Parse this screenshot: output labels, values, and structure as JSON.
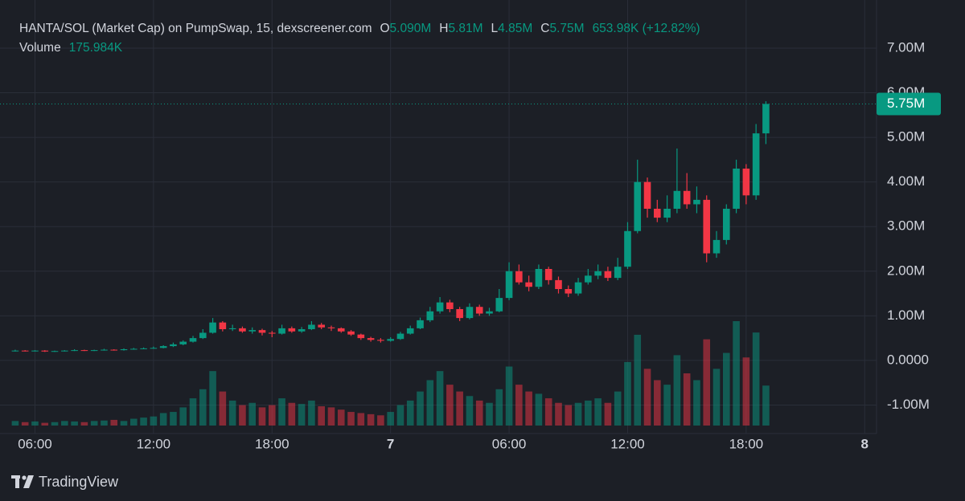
{
  "chart_data": {
    "type": "candlestick",
    "header": {
      "title": "HANTA/SOL (Market Cap) on PumpSwap, 15, dexscreener.com",
      "open_key": "O",
      "open_value": "5.090M",
      "high_key": "H",
      "high_value": "5.81M",
      "low_key": "L",
      "low_value": "4.85M",
      "close_key": "C",
      "close_value": "5.75M",
      "change": "653.98K (+12.82%)",
      "volume_key": "Volume",
      "volume_value": "175.984K"
    },
    "brand": "TradingView",
    "up_color": "#089981",
    "down_color": "#f23645",
    "grid": true,
    "x": [
      5.0,
      5.5,
      6.0,
      6.5,
      7.0,
      7.5,
      8.0,
      8.5,
      9.0,
      9.5,
      10.0,
      10.5,
      11.0,
      11.5,
      12.0,
      12.5,
      13.0,
      13.5,
      14.0,
      14.5,
      15.0,
      15.5,
      16.0,
      16.5,
      17.0,
      17.5,
      18.0,
      18.5,
      19.0,
      19.5,
      20.0,
      20.5,
      21.0,
      21.5,
      22.0,
      22.5,
      23.0,
      23.5,
      24.0,
      24.5,
      25.0,
      25.5,
      26.0,
      26.5,
      27.0,
      27.5,
      28.0,
      28.5,
      29.0,
      29.5,
      30.0,
      30.5,
      31.0,
      31.5,
      32.0,
      32.5,
      33.0,
      33.5,
      34.0,
      34.5,
      35.0,
      35.5,
      36.0,
      36.5,
      37.0,
      37.5,
      38.0,
      38.5,
      39.0,
      39.5,
      40.0,
      40.5,
      41.0,
      41.5,
      42.0,
      42.5,
      43.0
    ],
    "open": [
      0.22,
      0.22,
      0.21,
      0.22,
      0.2,
      0.21,
      0.22,
      0.23,
      0.22,
      0.23,
      0.24,
      0.23,
      0.25,
      0.26,
      0.27,
      0.28,
      0.32,
      0.36,
      0.42,
      0.5,
      0.62,
      0.85,
      0.7,
      0.72,
      0.65,
      0.68,
      0.62,
      0.6,
      0.72,
      0.65,
      0.7,
      0.8,
      0.74,
      0.72,
      0.65,
      0.58,
      0.5,
      0.46,
      0.44,
      0.48,
      0.6,
      0.72,
      0.9,
      1.1,
      1.3,
      1.15,
      0.95,
      1.2,
      1.05,
      1.1,
      1.4,
      2.0,
      1.75,
      1.65,
      2.05,
      1.8,
      1.6,
      1.5,
      1.75,
      1.9,
      2.0,
      1.85,
      2.1,
      2.9,
      4.0,
      3.4,
      3.2,
      3.4,
      3.8,
      3.5,
      3.6,
      2.4,
      2.7,
      3.4,
      4.3,
      3.7,
      5.09
    ],
    "high": [
      0.24,
      0.23,
      0.23,
      0.23,
      0.22,
      0.23,
      0.25,
      0.24,
      0.24,
      0.26,
      0.25,
      0.27,
      0.28,
      0.29,
      0.31,
      0.34,
      0.4,
      0.45,
      0.55,
      0.7,
      0.95,
      0.88,
      0.8,
      0.76,
      0.74,
      0.71,
      0.66,
      0.8,
      0.76,
      0.75,
      0.88,
      0.84,
      0.78,
      0.74,
      0.68,
      0.6,
      0.53,
      0.5,
      0.52,
      0.64,
      0.78,
      0.96,
      1.2,
      1.42,
      1.36,
      1.2,
      1.28,
      1.25,
      1.18,
      1.6,
      2.2,
      2.15,
      1.9,
      2.15,
      2.1,
      1.88,
      1.68,
      1.85,
      2.05,
      2.15,
      2.1,
      2.3,
      3.1,
      4.5,
      4.1,
      3.6,
      3.7,
      4.75,
      4.2,
      3.9,
      3.7,
      2.9,
      3.5,
      4.5,
      4.4,
      5.3,
      5.81
    ],
    "low": [
      0.2,
      0.2,
      0.2,
      0.19,
      0.19,
      0.2,
      0.21,
      0.21,
      0.21,
      0.22,
      0.22,
      0.22,
      0.24,
      0.25,
      0.26,
      0.27,
      0.3,
      0.34,
      0.4,
      0.48,
      0.6,
      0.65,
      0.66,
      0.62,
      0.6,
      0.56,
      0.52,
      0.58,
      0.62,
      0.62,
      0.68,
      0.7,
      0.66,
      0.62,
      0.55,
      0.46,
      0.42,
      0.4,
      0.42,
      0.46,
      0.58,
      0.7,
      0.86,
      1.05,
      1.08,
      0.88,
      0.92,
      1.0,
      1.0,
      1.08,
      1.35,
      1.7,
      1.55,
      1.6,
      1.7,
      1.5,
      1.42,
      1.45,
      1.7,
      1.82,
      1.78,
      1.8,
      2.05,
      2.85,
      3.2,
      3.1,
      3.1,
      3.3,
      3.4,
      3.3,
      2.2,
      2.3,
      2.6,
      3.3,
      3.5,
      3.6,
      4.85
    ],
    "close": [
      0.22,
      0.21,
      0.22,
      0.2,
      0.21,
      0.22,
      0.23,
      0.22,
      0.23,
      0.24,
      0.23,
      0.25,
      0.26,
      0.27,
      0.28,
      0.32,
      0.36,
      0.42,
      0.5,
      0.62,
      0.85,
      0.7,
      0.72,
      0.65,
      0.68,
      0.62,
      0.6,
      0.72,
      0.65,
      0.7,
      0.8,
      0.74,
      0.72,
      0.65,
      0.58,
      0.5,
      0.46,
      0.44,
      0.48,
      0.6,
      0.72,
      0.9,
      1.1,
      1.3,
      1.15,
      0.95,
      1.2,
      1.05,
      1.1,
      1.4,
      2.0,
      1.75,
      1.65,
      2.05,
      1.8,
      1.6,
      1.5,
      1.75,
      1.9,
      2.0,
      1.85,
      2.1,
      2.9,
      4.0,
      3.4,
      3.2,
      3.4,
      3.8,
      3.5,
      3.6,
      2.4,
      2.7,
      3.4,
      4.3,
      3.7,
      5.09,
      5.75
    ],
    "volume": [
      20,
      15,
      18,
      12,
      15,
      20,
      18,
      15,
      20,
      22,
      25,
      20,
      30,
      35,
      40,
      55,
      60,
      80,
      120,
      160,
      240,
      150,
      110,
      90,
      100,
      80,
      90,
      120,
      100,
      95,
      110,
      85,
      80,
      70,
      60,
      55,
      50,
      45,
      60,
      90,
      110,
      150,
      200,
      240,
      180,
      150,
      130,
      110,
      100,
      160,
      260,
      180,
      150,
      140,
      120,
      100,
      90,
      100,
      110,
      120,
      100,
      150,
      280,
      400,
      250,
      200,
      180,
      310,
      230,
      200,
      380,
      250,
      320,
      460,
      300,
      410,
      175.984
    ],
    "xlim": [
      4.8,
      48.6
    ],
    "ylim": [
      -1.64,
      7.72
    ],
    "xticks": [
      {
        "value": 6,
        "label": "06:00"
      },
      {
        "value": 12,
        "label": "12:00"
      },
      {
        "value": 18,
        "label": "18:00"
      },
      {
        "value": 24,
        "label": "7"
      },
      {
        "value": 30,
        "label": "06:00"
      },
      {
        "value": 36,
        "label": "12:00"
      },
      {
        "value": 42,
        "label": "18:00"
      },
      {
        "value": 48,
        "label": "8"
      }
    ],
    "yticks": [
      {
        "value": -1,
        "label": "-1.00M"
      },
      {
        "value": 0,
        "label": "0.0000"
      },
      {
        "value": 1,
        "label": "1.00M"
      },
      {
        "value": 2,
        "label": "2.00M"
      },
      {
        "value": 3,
        "label": "3.00M"
      },
      {
        "value": 4,
        "label": "4.00M"
      },
      {
        "value": 5,
        "label": "5.00M"
      },
      {
        "value": 6,
        "label": "6.00M"
      },
      {
        "value": 7,
        "label": "7.00M"
      }
    ],
    "price_line": {
      "value": 5.75,
      "label": "5.75M"
    }
  }
}
